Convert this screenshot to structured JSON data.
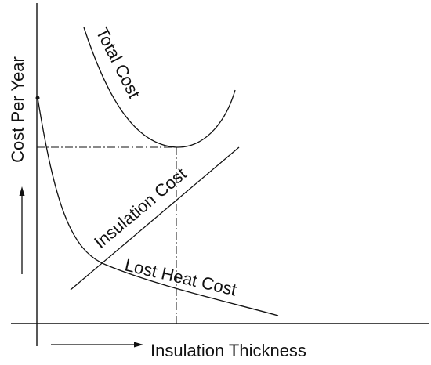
{
  "axes": {
    "y_label": "Cost Per Year",
    "x_label": "Insulation Thickness"
  },
  "curves": [
    {
      "label": "Total Cost"
    },
    {
      "label": "Insulation Cost"
    },
    {
      "label": "Lost Heat Cost"
    }
  ]
}
